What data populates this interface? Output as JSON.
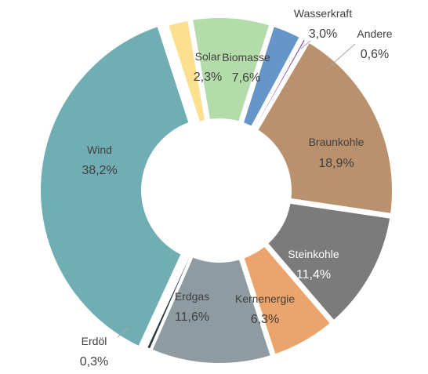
{
  "chart_data": {
    "type": "pie",
    "style": "donut",
    "title": "",
    "slices": [
      {
        "label": "Solar",
        "value": 2.3,
        "display": "2,3%",
        "color": "#fbe08f",
        "text_color": "#404040"
      },
      {
        "label": "Biomasse",
        "value": 7.6,
        "display": "7,6%",
        "color": "#b3dcaa",
        "text_color": "#404040"
      },
      {
        "label": "Wasserkraft",
        "value": 3.0,
        "display": "3,0%",
        "color": "#6696c8",
        "text_color": "#404040"
      },
      {
        "label": "Andere",
        "value": 0.6,
        "display": "0,6%",
        "color": "#7e4ca0",
        "text_color": "#404040"
      },
      {
        "label": "Braunkohle",
        "value": 18.9,
        "display": "18,9%",
        "color": "#b9916d",
        "text_color": "#404040"
      },
      {
        "label": "Steinkohle",
        "value": 11.4,
        "display": "11,4%",
        "color": "#7b7b7b",
        "text_color": "#ffffff"
      },
      {
        "label": "Kernenergie",
        "value": 6.3,
        "display": "6,3%",
        "color": "#eba46b",
        "text_color": "#404040"
      },
      {
        "label": "Erdgas",
        "value": 11.6,
        "display": "11,6%",
        "color": "#8e9ca2",
        "text_color": "#404040"
      },
      {
        "label": "Erdöl",
        "value": 0.3,
        "display": "0,3%",
        "color": "#2d3a3e",
        "text_color": "#404040"
      },
      {
        "label": "Wind",
        "value": 38.2,
        "display": "38,2%",
        "color": "#71aeb3",
        "text_color": "#404040"
      }
    ]
  }
}
